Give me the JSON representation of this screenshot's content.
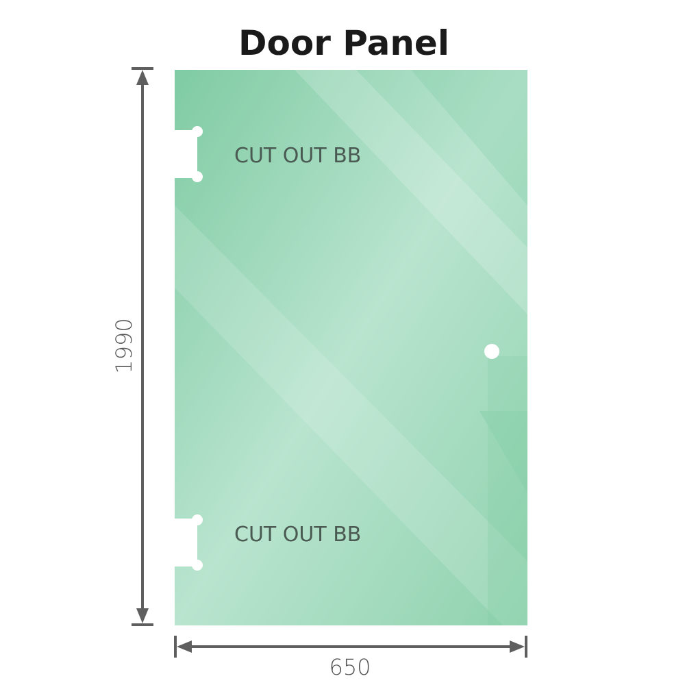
{
  "title": "Door Panel",
  "cutout_labels": [
    "CUT OUT BB",
    "CUT OUT BB"
  ],
  "dimensions": {
    "height": "1990",
    "width": "650"
  },
  "colors": {
    "glass": "#86cfa8",
    "glass_light": "#bde6d2",
    "dimension_line": "#5f5f5f"
  }
}
